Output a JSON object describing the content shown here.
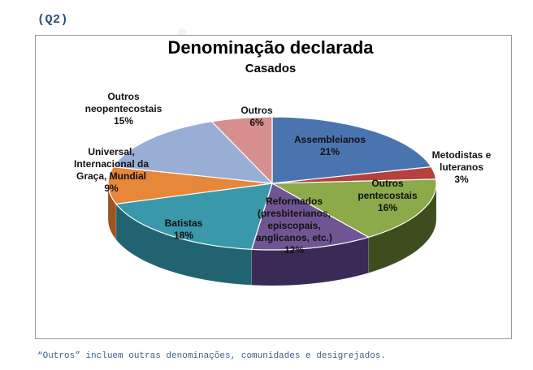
{
  "header": {
    "question_label": "(Q2)"
  },
  "chart_data": {
    "type": "pie",
    "title": "Denominação declarada",
    "subtitle": "Casados",
    "slices": [
      {
        "label": "Assembleianos",
        "value": 21,
        "value_label": "21%",
        "color": "#4a74b0",
        "side_color": "#2f4b77"
      },
      {
        "label": "Metodistas e luteranos",
        "value": 3,
        "value_label": "3%",
        "color": "#b5403d",
        "side_color": "#7a2927"
      },
      {
        "label": "Outros pentecostais",
        "value": 16,
        "value_label": "16%",
        "color": "#8caa4a",
        "side_color": "#3d4d1d"
      },
      {
        "label": "Reformados (presbiterianos, episcopais, anglicanos, etc.)",
        "value": 12,
        "value_label": "12%",
        "color": "#6f5693",
        "side_color": "#3b2a55"
      },
      {
        "label": "Batistas",
        "value": 18,
        "value_label": "18%",
        "color": "#3a98ab",
        "side_color": "#216371"
      },
      {
        "label": "Universal, Internacional da Graça, Mundial",
        "value": 9,
        "value_label": "9%",
        "color": "#e6873a",
        "side_color": "#9c5520"
      },
      {
        "label": "Outros neopentecostais",
        "value": 15,
        "value_label": "15%",
        "color": "#98aed4",
        "side_color": "#61779c"
      },
      {
        "label": "Outros",
        "value": 6,
        "value_label": "6%",
        "color": "#d78f8d",
        "side_color": "#9a5e5d"
      }
    ]
  },
  "footnote": "“Outros” incluem outras denominações, comunidades e desigrejados."
}
